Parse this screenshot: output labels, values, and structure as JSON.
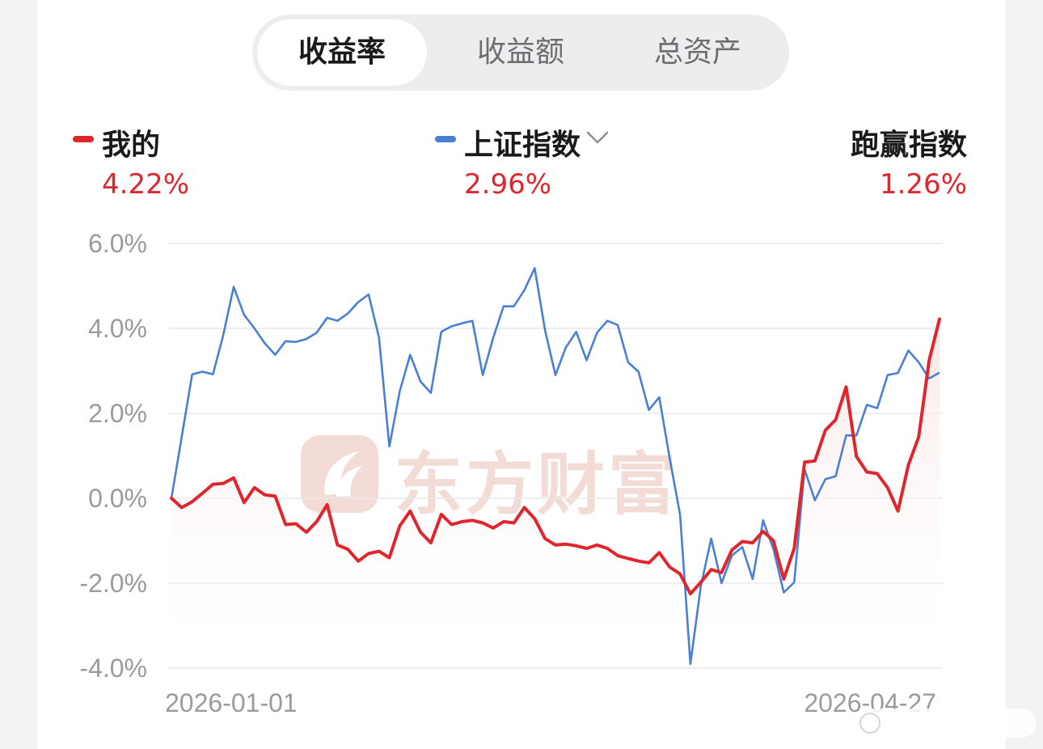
{
  "tabs": [
    {
      "label": "收益率",
      "active": true
    },
    {
      "label": "收益额",
      "active": false
    },
    {
      "label": "总资产",
      "active": false
    }
  ],
  "legend": {
    "mine": {
      "name": "我的",
      "value": "4.22%"
    },
    "index": {
      "name": "上证指数",
      "value": "2.96%"
    },
    "beat": {
      "name": "跑赢指数",
      "value": "1.26%"
    }
  },
  "watermark": "东方财富",
  "colors": {
    "mine": "#e0262d",
    "index": "#4a7fd6",
    "up": "#e0262d",
    "watermark": "#f3dcd6"
  },
  "icons": {
    "dropdown": "chevron-down-icon",
    "watermark_logo": "eastmoney-logo"
  },
  "chart_data": {
    "type": "line",
    "x_tick_labels": [
      "2026-01-01",
      "2026-04-27"
    ],
    "y_tick_labels": [
      "6.0%",
      "4.0%",
      "2.0%",
      "0.0%",
      "-2.0%",
      "-4.0%"
    ],
    "ylim": [
      -4.0,
      6.0
    ],
    "y_ticks": [
      6.0,
      4.0,
      2.0,
      0.0,
      -2.0,
      -4.0
    ],
    "grid": true,
    "area_fill_series": "我的",
    "series": [
      {
        "name": "我的",
        "values": [
          0.0,
          -0.22,
          -0.08,
          0.12,
          0.33,
          0.35,
          0.48,
          -0.1,
          0.25,
          0.08,
          0.05,
          -0.62,
          -0.6,
          -0.8,
          -0.55,
          -0.15,
          -1.1,
          -1.2,
          -1.48,
          -1.3,
          -1.25,
          -1.4,
          -0.65,
          -0.3,
          -0.8,
          -1.05,
          -0.38,
          -0.62,
          -0.55,
          -0.52,
          -0.58,
          -0.7,
          -0.55,
          -0.58,
          -0.22,
          -0.48,
          -0.95,
          -1.1,
          -1.08,
          -1.12,
          -1.18,
          -1.1,
          -1.18,
          -1.35,
          -1.42,
          -1.48,
          -1.52,
          -1.28,
          -1.62,
          -1.78,
          -2.25,
          -1.98,
          -1.68,
          -1.75,
          -1.22,
          -1.02,
          -1.05,
          -0.78,
          -1.0,
          -1.9,
          -1.18,
          0.85,
          0.88,
          1.6,
          1.85,
          2.62,
          0.98,
          0.62,
          0.58,
          0.25,
          -0.3,
          0.78,
          1.45,
          3.25,
          4.22
        ]
      },
      {
        "name": "上证指数",
        "values": [
          0.0,
          1.45,
          2.92,
          2.98,
          2.92,
          3.85,
          4.98,
          4.32,
          4.0,
          3.65,
          3.38,
          3.7,
          3.68,
          3.75,
          3.9,
          4.25,
          4.18,
          4.35,
          4.62,
          4.8,
          3.78,
          1.22,
          2.52,
          3.38,
          2.75,
          2.48,
          3.92,
          4.05,
          4.12,
          4.18,
          2.9,
          3.78,
          4.52,
          4.52,
          4.9,
          5.42,
          3.95,
          2.9,
          3.55,
          3.92,
          3.25,
          3.9,
          4.18,
          4.08,
          3.2,
          2.98,
          2.08,
          2.38,
          0.95,
          -0.38,
          -3.9,
          -2.08,
          -0.95,
          -2.0,
          -1.35,
          -1.15,
          -1.9,
          -0.52,
          -1.2,
          -2.22,
          -1.98,
          0.68,
          -0.05,
          0.45,
          0.52,
          1.48,
          1.48,
          2.2,
          2.12,
          2.9,
          2.95,
          3.48,
          3.2,
          2.82,
          2.96
        ]
      }
    ]
  }
}
